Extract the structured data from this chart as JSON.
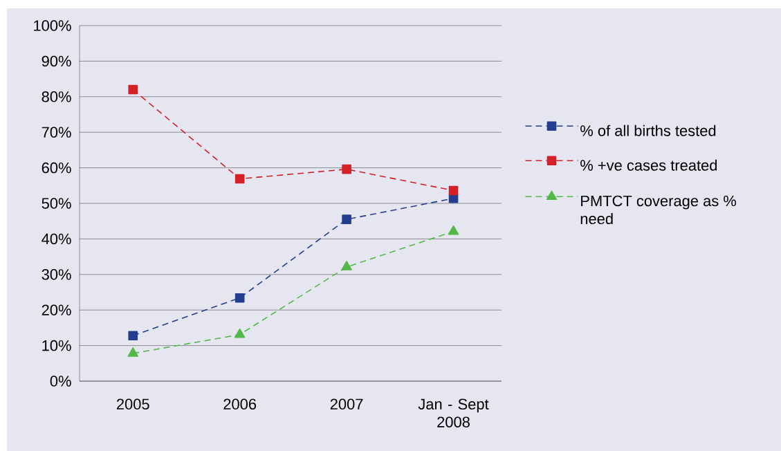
{
  "chart_data": {
    "type": "line",
    "categories": [
      "2005",
      "2006",
      "2007",
      "Jan - Sept 2008"
    ],
    "series": [
      {
        "name": "% of all births tested",
        "color": "#233e8f",
        "values": [
          12.8,
          23.4,
          45.5,
          51.4
        ],
        "marker": "square",
        "line_style": "dashed"
      },
      {
        "name": "% +ve cases treated",
        "color": "#d42027",
        "values": [
          82,
          56.9,
          59.6,
          53.6
        ],
        "marker": "square",
        "line_style": "dashed"
      },
      {
        "name": "PMTCT coverage as % need",
        "color": "#54b848",
        "values": [
          7.8,
          13.1,
          32.1,
          42.1
        ],
        "marker": "triangle",
        "line_style": "dashed"
      }
    ],
    "ylim": [
      0,
      100
    ],
    "yticks": [
      {
        "value": 0,
        "label": "0%"
      },
      {
        "value": 10,
        "label": "10%"
      },
      {
        "value": 20,
        "label": "20%"
      },
      {
        "value": 30,
        "label": "30%"
      },
      {
        "value": 40,
        "label": "40%"
      },
      {
        "value": 50,
        "label": "50%"
      },
      {
        "value": 60,
        "label": "60%"
      },
      {
        "value": 70,
        "label": "70%"
      },
      {
        "value": 80,
        "label": "80%"
      },
      {
        "value": 90,
        "label": "90%"
      },
      {
        "value": 100,
        "label": "100%"
      }
    ],
    "grid": "y",
    "legend": "right"
  }
}
